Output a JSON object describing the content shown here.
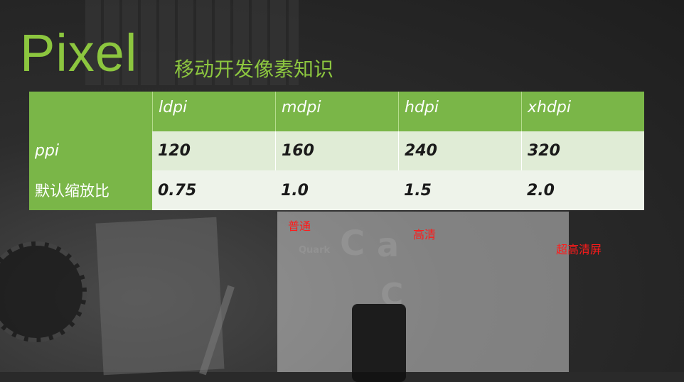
{
  "slide": {
    "title": "Pixel",
    "subtitle": "移动开发像素知识"
  },
  "table": {
    "columns": [
      "ldpi",
      "mdpi",
      "hdpi",
      "xhdpi"
    ],
    "rows": [
      {
        "label": "ppi",
        "values": [
          "120",
          "160",
          "240",
          "320"
        ]
      },
      {
        "label": "默认缩放比",
        "values": [
          "0.75",
          "1.0",
          "1.5",
          "2.0"
        ]
      }
    ]
  },
  "annotations": {
    "normal": "普通",
    "high": "高清",
    "ultra": "超高清屏"
  },
  "background": {
    "logos": [
      "Quark",
      "C",
      "a",
      "C"
    ]
  }
}
